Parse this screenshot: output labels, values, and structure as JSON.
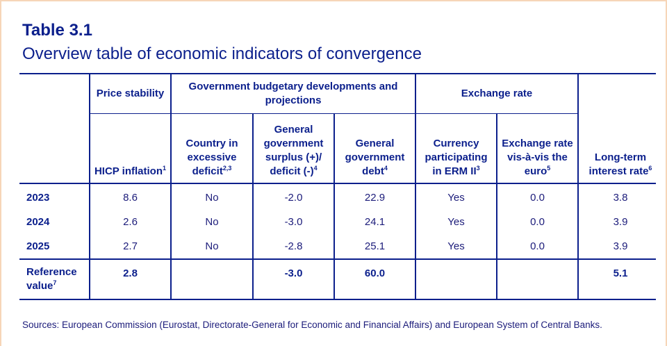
{
  "title": "Table 3.1",
  "subtitle": "Overview table of economic indicators of convergence",
  "group_headers": {
    "price_stability": "Price stability",
    "government": "Government budgetary developments and projections",
    "exchange_rate": "Exchange rate"
  },
  "columns": [
    {
      "label": "HICP inflation",
      "note": "1"
    },
    {
      "label": "Country in excessive deficit",
      "note": "2,3"
    },
    {
      "label": "General government surplus (+)/ deficit (-)",
      "note": "4"
    },
    {
      "label": "General government debt",
      "note": "4"
    },
    {
      "label": "Currency participating in ERM II",
      "note": "3"
    },
    {
      "label": "Exchange rate vis-à-vis the euro",
      "note": "5"
    },
    {
      "label": "Long-term interest rate",
      "note": "6"
    }
  ],
  "rows": [
    {
      "label": "2023",
      "values": [
        "8.6",
        "No",
        "-2.0",
        "22.9",
        "Yes",
        "0.0",
        "3.8"
      ]
    },
    {
      "label": "2024",
      "values": [
        "2.6",
        "No",
        "-3.0",
        "24.1",
        "Yes",
        "0.0",
        "3.9"
      ]
    },
    {
      "label": "2025",
      "values": [
        "2.7",
        "No",
        "-2.8",
        "25.1",
        "Yes",
        "0.0",
        "3.9"
      ]
    }
  ],
  "reference": {
    "label": "Reference value",
    "note": "7",
    "values": [
      "2.8",
      "",
      "-3.0",
      "60.0",
      "",
      "",
      "5.1"
    ]
  },
  "sources": "Sources: European Commission (Eurostat, Directorate-General for Economic and Financial Affairs) and European System of Central Banks.",
  "colors": {
    "primary": "#0b1f8c",
    "text": "#1b1b7a",
    "frame": "#f6d5b8"
  }
}
